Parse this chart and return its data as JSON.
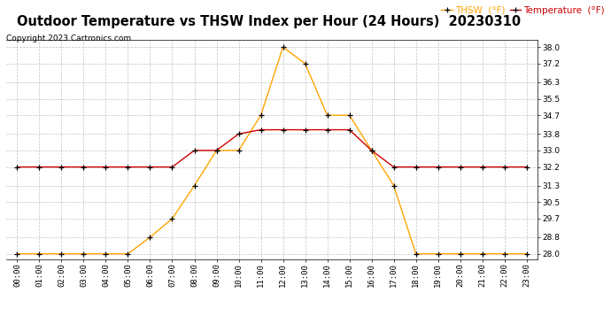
{
  "title": "Outdoor Temperature vs THSW Index per Hour (24 Hours)  20230310",
  "copyright": "Copyright 2023 Cartronics.com",
  "legend_thsw": "THSW  (°F)",
  "legend_temp": "Temperature  (°F)",
  "hours": [
    0,
    1,
    2,
    3,
    4,
    5,
    6,
    7,
    8,
    9,
    10,
    11,
    12,
    13,
    14,
    15,
    16,
    17,
    18,
    19,
    20,
    21,
    22,
    23
  ],
  "hour_labels": [
    "00:00",
    "01:00",
    "02:00",
    "03:00",
    "04:00",
    "05:00",
    "06:00",
    "07:00",
    "08:00",
    "09:00",
    "10:00",
    "11:00",
    "12:00",
    "13:00",
    "14:00",
    "15:00",
    "16:00",
    "17:00",
    "18:00",
    "19:00",
    "20:00",
    "21:00",
    "22:00",
    "23:00"
  ],
  "thsw": [
    28.0,
    28.0,
    28.0,
    28.0,
    28.0,
    28.0,
    28.8,
    29.7,
    31.3,
    33.0,
    33.0,
    34.7,
    38.0,
    37.2,
    34.7,
    34.7,
    33.0,
    31.3,
    28.0,
    28.0,
    28.0,
    28.0,
    28.0,
    28.0
  ],
  "temp": [
    32.2,
    32.2,
    32.2,
    32.2,
    32.2,
    32.2,
    32.2,
    32.2,
    33.0,
    33.0,
    33.8,
    34.0,
    34.0,
    34.0,
    34.0,
    34.0,
    33.0,
    32.2,
    32.2,
    32.2,
    32.2,
    32.2,
    32.2,
    32.2
  ],
  "thsw_color": "#FFA500",
  "temp_color": "#CC0000",
  "ylim_min": 27.75,
  "ylim_max": 38.35,
  "yticks": [
    28.0,
    28.8,
    29.7,
    30.5,
    31.3,
    32.2,
    33.0,
    33.8,
    34.7,
    35.5,
    36.3,
    37.2,
    38.0
  ],
  "title_fontsize": 10.5,
  "copyright_fontsize": 6.5,
  "legend_fontsize": 7.5,
  "tick_fontsize": 6.5,
  "background_color": "#ffffff",
  "grid_color": "#bbbbbb",
  "marker": "+",
  "marker_size": 4,
  "marker_edge_width": 0.9,
  "line_width": 1.0
}
